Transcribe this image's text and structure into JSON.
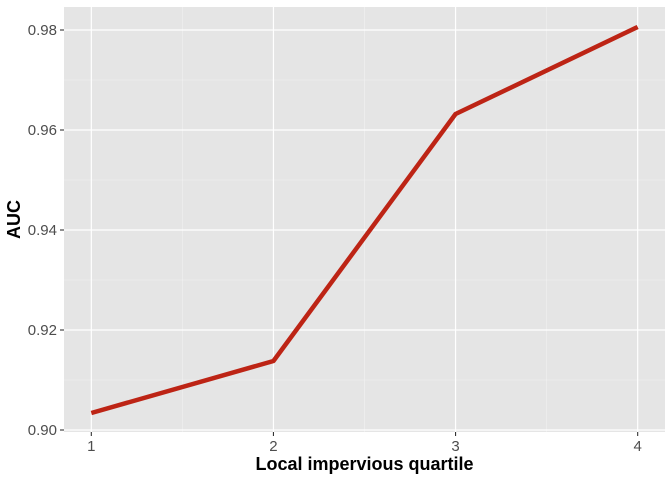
{
  "chart_data": {
    "type": "line",
    "xlabel": "Local impervious quartile",
    "ylabel": "AUC",
    "x_ticks": [
      "1",
      "2",
      "3",
      "4"
    ],
    "y_ticks": [
      "0.90",
      "0.92",
      "0.94",
      "0.96",
      "0.98"
    ],
    "xlim": [
      0.85,
      4.15
    ],
    "ylim": [
      0.8996,
      0.9846
    ],
    "grid": true,
    "legend": "none",
    "series": [
      {
        "x": [
          1,
          2,
          3,
          4
        ],
        "values": [
          0.9034,
          0.9138,
          0.9632,
          0.9806
        ],
        "color": "#bd2415"
      }
    ],
    "colors": {
      "panel_background": "#e5e5e5",
      "grid_major": "#ffffff",
      "grid_minor": "#f2f2f2",
      "tick_mark": "#333333"
    }
  }
}
